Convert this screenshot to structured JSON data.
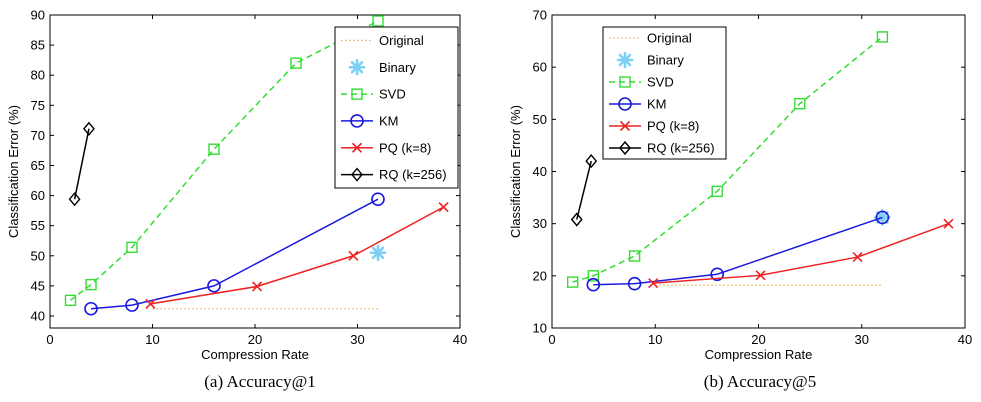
{
  "chart_data": [
    {
      "type": "line",
      "caption": "(a)  Accuracy@1",
      "xlabel": "Compression Rate",
      "ylabel": "Classification Error (%)",
      "xlim": [
        0,
        40
      ],
      "ylim": [
        38,
        90
      ],
      "xticks": [
        0,
        10,
        20,
        30,
        40
      ],
      "yticks": [
        40,
        45,
        50,
        55,
        60,
        65,
        70,
        75,
        80,
        85,
        90
      ],
      "legend_position": "top-right",
      "series": [
        {
          "name": "Original",
          "color": "#f0b040",
          "style": "dotted",
          "marker": "none",
          "x": [
            10,
            32
          ],
          "y": [
            41.2,
            41.2
          ]
        },
        {
          "name": "Binary",
          "color": "#7fd0f5",
          "style": "none",
          "marker": "asterisk",
          "x": [
            32
          ],
          "y": [
            50.5
          ]
        },
        {
          "name": "SVD",
          "color": "#33dd33",
          "style": "dashed",
          "marker": "square",
          "x": [
            2,
            4,
            8,
            16,
            24,
            32
          ],
          "y": [
            42.6,
            45.2,
            51.4,
            67.7,
            82.0,
            89.0
          ]
        },
        {
          "name": "KM",
          "color": "#1a1ae0",
          "style": "solid",
          "marker": "circle",
          "x": [
            4,
            8,
            16,
            32
          ],
          "y": [
            41.2,
            41.8,
            45.0,
            59.4
          ]
        },
        {
          "name": "PQ (k=8)",
          "color": "#ee2222",
          "style": "solid",
          "marker": "x",
          "x": [
            9.8,
            20.2,
            29.6,
            38.4
          ],
          "y": [
            42.0,
            44.9,
            50.0,
            58.1
          ]
        },
        {
          "name": "RQ (k=256)",
          "color": "#000000",
          "style": "solid",
          "marker": "diamond",
          "x": [
            2.4,
            3.8
          ],
          "y": [
            59.4,
            71.1
          ]
        }
      ]
    },
    {
      "type": "line",
      "caption": "(b)  Accuracy@5",
      "xlabel": "Compression Rate",
      "ylabel": "Classification Error (%)",
      "xlim": [
        0,
        40
      ],
      "ylim": [
        10,
        70
      ],
      "xticks": [
        0,
        10,
        20,
        30,
        40
      ],
      "yticks": [
        10,
        20,
        30,
        40,
        50,
        60,
        70
      ],
      "legend_position": "top-left",
      "series": [
        {
          "name": "Original",
          "color": "#f0b040",
          "style": "dotted",
          "marker": "none",
          "x": [
            10,
            32
          ],
          "y": [
            18.2,
            18.2
          ]
        },
        {
          "name": "Binary",
          "color": "#7fd0f5",
          "style": "none",
          "marker": "asterisk",
          "x": [
            32
          ],
          "y": [
            31.2
          ]
        },
        {
          "name": "SVD",
          "color": "#33dd33",
          "style": "dashed",
          "marker": "square",
          "x": [
            2,
            4,
            8,
            16,
            24,
            32
          ],
          "y": [
            18.8,
            20.0,
            23.8,
            36.2,
            53.0,
            65.8
          ]
        },
        {
          "name": "KM",
          "color": "#1a1ae0",
          "style": "solid",
          "marker": "circle",
          "x": [
            4,
            8,
            16,
            32
          ],
          "y": [
            18.3,
            18.5,
            20.3,
            31.2
          ]
        },
        {
          "name": "PQ (k=8)",
          "color": "#ee2222",
          "style": "solid",
          "marker": "x",
          "x": [
            9.8,
            20.2,
            29.6,
            38.4
          ],
          "y": [
            18.6,
            20.1,
            23.6,
            30.0
          ]
        },
        {
          "name": "RQ (k=256)",
          "color": "#000000",
          "style": "solid",
          "marker": "diamond",
          "x": [
            2.4,
            3.8
          ],
          "y": [
            30.8,
            42.0
          ]
        }
      ]
    }
  ]
}
